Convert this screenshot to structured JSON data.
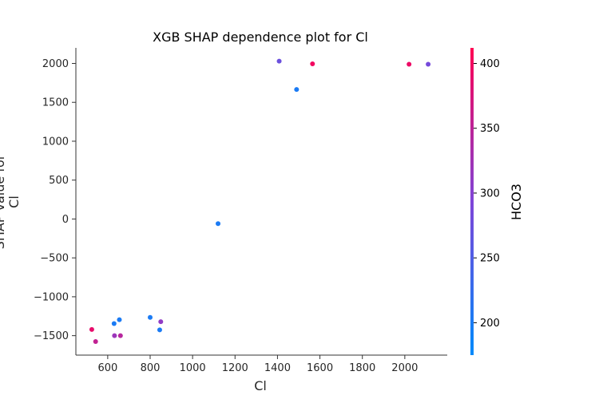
{
  "chart_data": {
    "type": "scatter",
    "title": "XGB SHAP dependence plot for Cl",
    "xlabel": "Cl",
    "ylabel": [
      "SHAP value for",
      "Cl"
    ],
    "xlim": [
      450,
      2200
    ],
    "ylim": [
      -1750,
      2200
    ],
    "xticks": [
      600,
      800,
      1000,
      1200,
      1400,
      1600,
      1800,
      2000
    ],
    "yticks": [
      -1500,
      -1000,
      -500,
      0,
      500,
      1000,
      1500,
      2000
    ],
    "grid": false,
    "points": [
      {
        "x": 525,
        "y": -1420,
        "c": 390
      },
      {
        "x": 543,
        "y": -1575,
        "c": 355
      },
      {
        "x": 630,
        "y": -1345,
        "c": 200
      },
      {
        "x": 632,
        "y": -1500,
        "c": 320
      },
      {
        "x": 655,
        "y": -1295,
        "c": 200
      },
      {
        "x": 660,
        "y": -1500,
        "c": 345
      },
      {
        "x": 800,
        "y": -1265,
        "c": 200
      },
      {
        "x": 845,
        "y": -1425,
        "c": 200
      },
      {
        "x": 850,
        "y": -1320,
        "c": 310
      },
      {
        "x": 1120,
        "y": -60,
        "c": 200
      },
      {
        "x": 1408,
        "y": 2030,
        "c": 275
      },
      {
        "x": 1490,
        "y": 1665,
        "c": 200
      },
      {
        "x": 1565,
        "y": 1995,
        "c": 400
      },
      {
        "x": 2020,
        "y": 1990,
        "c": 395
      },
      {
        "x": 2110,
        "y": 1990,
        "c": 285
      }
    ],
    "colorbar": {
      "label": "HCO3",
      "range": [
        175,
        412
      ],
      "ticks": [
        200,
        250,
        300,
        350,
        400
      ],
      "colors": [
        "#008afb",
        "#7f45d8",
        "#ff0052"
      ]
    }
  }
}
